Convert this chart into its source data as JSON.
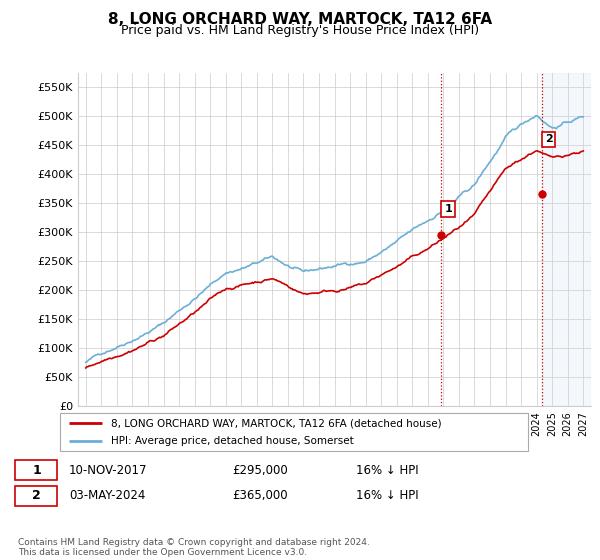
{
  "title": "8, LONG ORCHARD WAY, MARTOCK, TA12 6FA",
  "subtitle": "Price paid vs. HM Land Registry's House Price Index (HPI)",
  "legend_line1": "8, LONG ORCHARD WAY, MARTOCK, TA12 6FA (detached house)",
  "legend_line2": "HPI: Average price, detached house, Somerset",
  "annotation1_date": "10-NOV-2017",
  "annotation1_price": "£295,000",
  "annotation1_hpi": "16% ↓ HPI",
  "annotation2_date": "03-MAY-2024",
  "annotation2_price": "£365,000",
  "annotation2_hpi": "16% ↓ HPI",
  "footnote": "Contains HM Land Registry data © Crown copyright and database right 2024.\nThis data is licensed under the Open Government Licence v3.0.",
  "hpi_color": "#6baed6",
  "price_color": "#cc0000",
  "marker_color": "#cc0000",
  "vline_color": "#cc0000",
  "shaded_color": "#c6dbef",
  "background_color": "#ffffff",
  "grid_color": "#cccccc",
  "ylim": [
    0,
    575000
  ],
  "yticks": [
    0,
    50000,
    100000,
    150000,
    200000,
    250000,
    300000,
    350000,
    400000,
    450000,
    500000,
    550000
  ],
  "ytick_labels": [
    "£0",
    "£50K",
    "£100K",
    "£150K",
    "£200K",
    "£250K",
    "£300K",
    "£350K",
    "£400K",
    "£450K",
    "£500K",
    "£550K"
  ],
  "sale1_x": 2017.86,
  "sale1_y": 295000,
  "sale2_x": 2024.33,
  "sale2_y": 365000,
  "vline1_x": 2017.86,
  "vline2_x": 2024.33,
  "shade_start": 2024.33,
  "shade_end": 2027.5,
  "xlim": [
    1994.5,
    2027.5
  ],
  "xticks": [
    1995,
    1996,
    1997,
    1998,
    1999,
    2000,
    2001,
    2002,
    2003,
    2004,
    2005,
    2006,
    2007,
    2008,
    2009,
    2010,
    2011,
    2012,
    2013,
    2014,
    2015,
    2016,
    2017,
    2018,
    2019,
    2020,
    2021,
    2022,
    2023,
    2024,
    2025,
    2026,
    2027
  ]
}
